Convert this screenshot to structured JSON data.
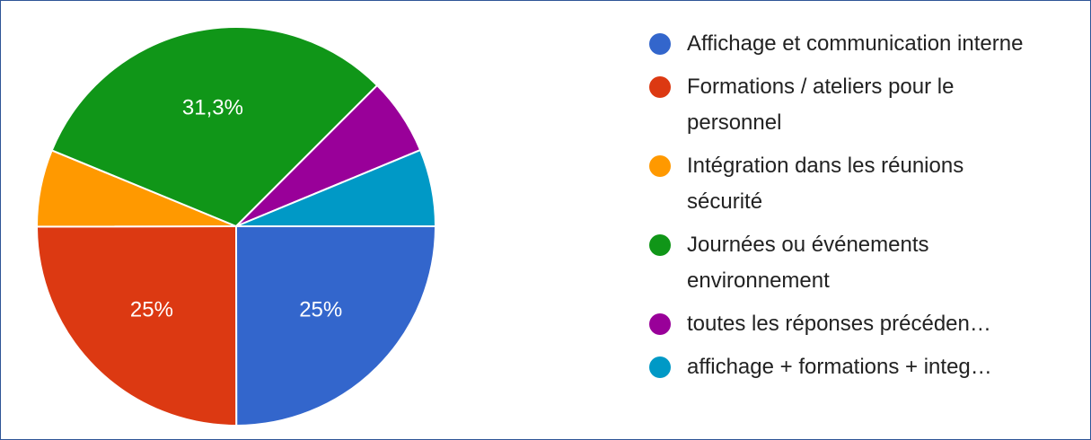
{
  "chart_data": {
    "type": "pie",
    "categories": [
      "Affichage et communication interne",
      "Formations / ateliers pour le personnel",
      "Intégration dans les réunions sécurité",
      "Journées ou événements environnement",
      "toutes les réponses précéden…",
      "affichage + formations + integ…"
    ],
    "values": [
      25,
      25,
      6.25,
      31.3,
      6.25,
      6.25
    ],
    "value_labels": [
      "25%",
      "25%",
      null,
      "31,3%",
      null,
      null
    ],
    "colors": [
      "#3366cc",
      "#dc3912",
      "#ff9900",
      "#109618",
      "#990099",
      "#0099c6"
    ],
    "legend": "right"
  }
}
